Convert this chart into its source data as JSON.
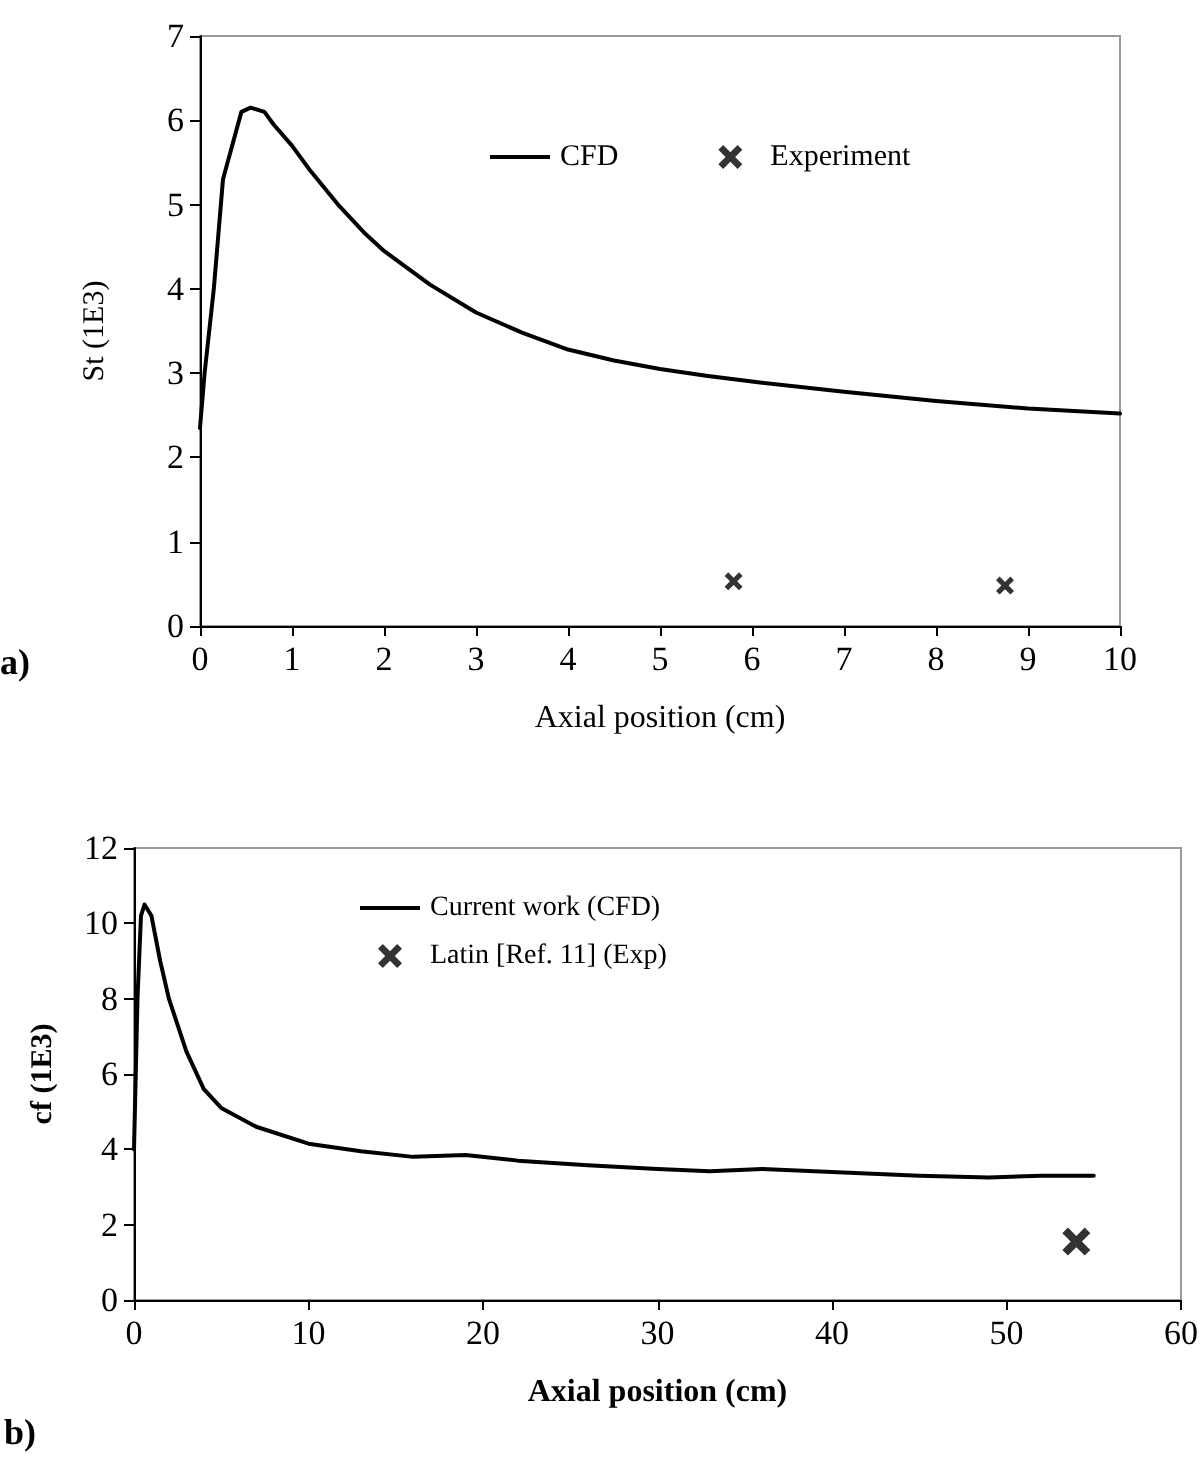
{
  "chart_data": [
    {
      "type": "line",
      "xlabel": "Axial position (cm)",
      "ylabel": "St (1E3)",
      "annotations": [
        "a)"
      ],
      "legend": "top",
      "xlim": [
        0,
        10
      ],
      "xticks": [
        0,
        1,
        2,
        3,
        4,
        5,
        6,
        7,
        8,
        9,
        10
      ],
      "ylim": [
        0,
        7
      ],
      "yticks": [
        0,
        1,
        2,
        3,
        4,
        5,
        6,
        7
      ],
      "series": [
        {
          "name": "CFD",
          "marker": "none",
          "color": "#000000",
          "x": [
            0,
            0.05,
            0.15,
            0.25,
            0.35,
            0.45,
            0.55,
            0.7,
            0.8,
            1,
            1.2,
            1.5,
            1.8,
            2,
            2.5,
            3,
            3.5,
            4,
            4.5,
            5,
            5.5,
            6,
            7,
            8,
            9,
            10
          ],
          "values": [
            2.35,
            3.0,
            4.0,
            5.3,
            5.7,
            6.1,
            6.15,
            6.1,
            5.95,
            5.7,
            5.4,
            5.0,
            4.65,
            4.45,
            4.05,
            3.72,
            3.48,
            3.28,
            3.15,
            3.05,
            2.97,
            2.9,
            2.78,
            2.67,
            2.58,
            2.52
          ]
        },
        {
          "name": "Experiment",
          "type": "scatter",
          "marker": "cross",
          "color": "#000000",
          "x": [
            5.8,
            8.75
          ],
          "values": [
            0.53,
            0.48
          ]
        }
      ]
    },
    {
      "type": "line",
      "xlabel": "Axial position (cm)",
      "ylabel": "cf (1E3)",
      "annotations": [
        "b)"
      ],
      "legend": "top",
      "xlim": [
        0,
        60
      ],
      "xticks": [
        0,
        10,
        20,
        30,
        40,
        50,
        60
      ],
      "ylim": [
        0,
        12
      ],
      "yticks": [
        0,
        2,
        4,
        6,
        8,
        10,
        12
      ],
      "series": [
        {
          "name": "Current work (CFD)",
          "marker": "none",
          "color": "#000000",
          "x": [
            0,
            0.2,
            0.4,
            0.6,
            1,
            1.5,
            2,
            3,
            4,
            5,
            7,
            10,
            13,
            16,
            19,
            22,
            26,
            30,
            33,
            36,
            40,
            45,
            49,
            52,
            55
          ],
          "values": [
            4,
            8,
            10.2,
            10.5,
            10.2,
            9,
            8,
            6.6,
            5.6,
            5.1,
            4.6,
            4.15,
            3.95,
            3.8,
            3.85,
            3.7,
            3.58,
            3.48,
            3.42,
            3.48,
            3.4,
            3.3,
            3.25,
            3.3,
            3.3
          ]
        },
        {
          "name": "Latin [Ref. 11] (Exp)",
          "type": "scatter",
          "marker": "cross",
          "color": "#000000",
          "x": [
            54
          ],
          "values": [
            1.55
          ]
        }
      ]
    }
  ]
}
